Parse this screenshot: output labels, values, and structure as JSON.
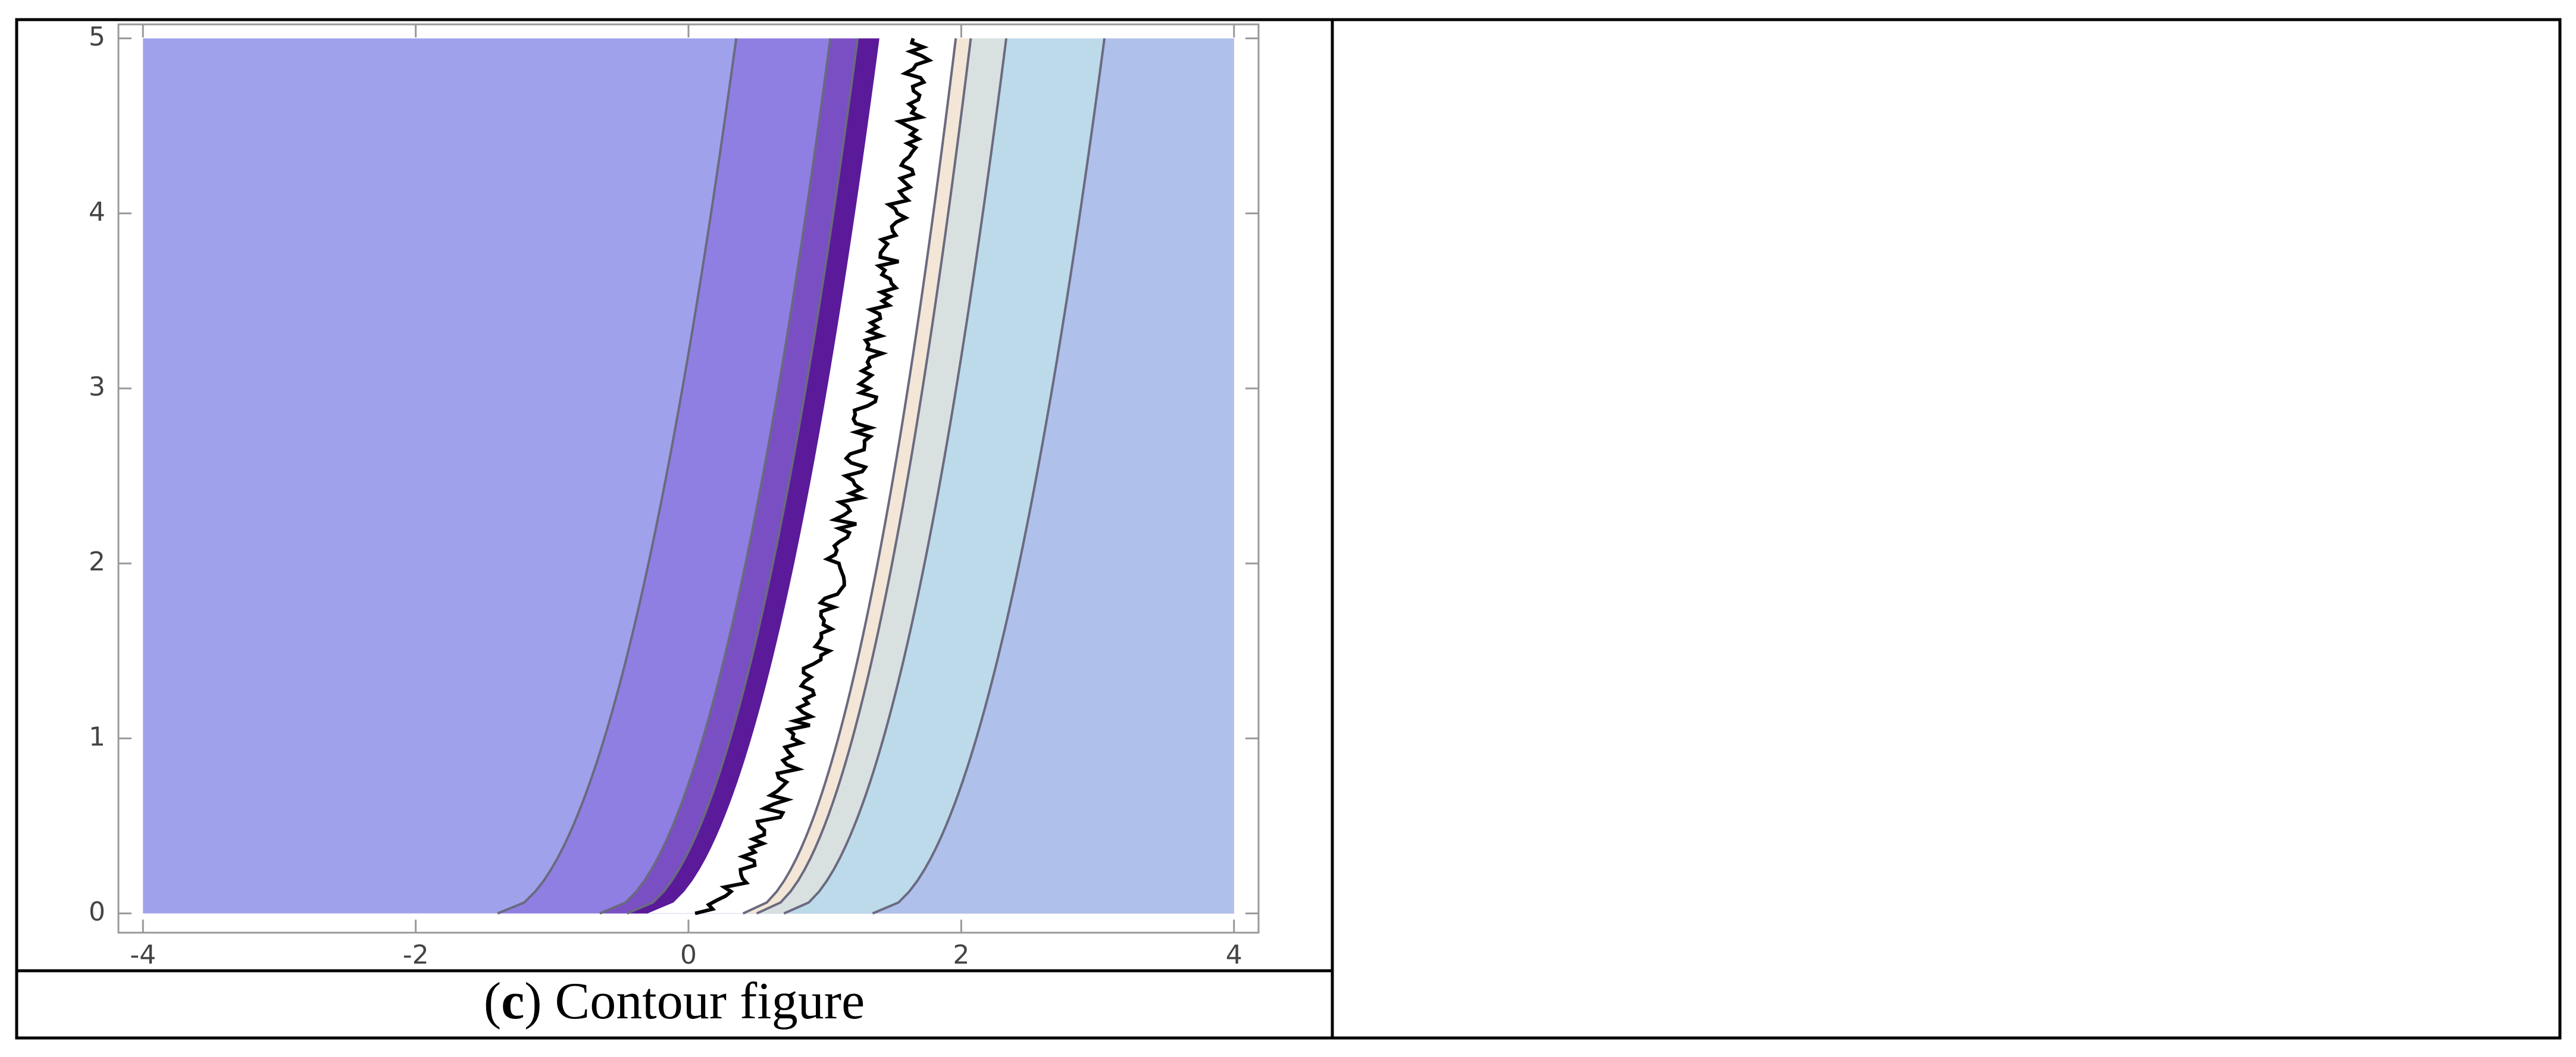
{
  "chart_data": {
    "type": "contour",
    "xlim": [
      -4.18,
      4.18
    ],
    "ylim": [
      -0.11,
      5.08
    ],
    "xticks": [
      -4,
      -2,
      0,
      2,
      4
    ],
    "yticks": [
      0,
      1,
      2,
      3,
      4,
      5
    ],
    "region_x": [
      -4,
      4
    ],
    "region_y": [
      0,
      5
    ],
    "background_color": "#9fa2ea",
    "bands": [
      {
        "color": "#8f7fe3",
        "x0": -1.4,
        "x5": 0.35
      },
      {
        "color": "#7a4fc4",
        "x0": -0.65,
        "x5": 1.04
      },
      {
        "color": "#5a1a9a",
        "x0": -0.45,
        "x5": 1.24
      },
      {
        "color": "#ffffff",
        "x0": -0.3,
        "x5": 1.4
      },
      {
        "color": "#f3e6d6",
        "x0": 0.4,
        "x5": 1.96
      },
      {
        "color": "#d8e0e0",
        "x0": 0.5,
        "x5": 2.07
      },
      {
        "color": "#bddaea",
        "x0": 0.7,
        "x5": 2.33
      },
      {
        "color": "#afc0ea",
        "x0": 1.35,
        "x5": 3.05
      }
    ],
    "trace": {
      "color": "#000000",
      "x0": 0.05,
      "x5": 1.7
    },
    "caption": [
      "(",
      "c",
      ") Contour figure"
    ]
  }
}
